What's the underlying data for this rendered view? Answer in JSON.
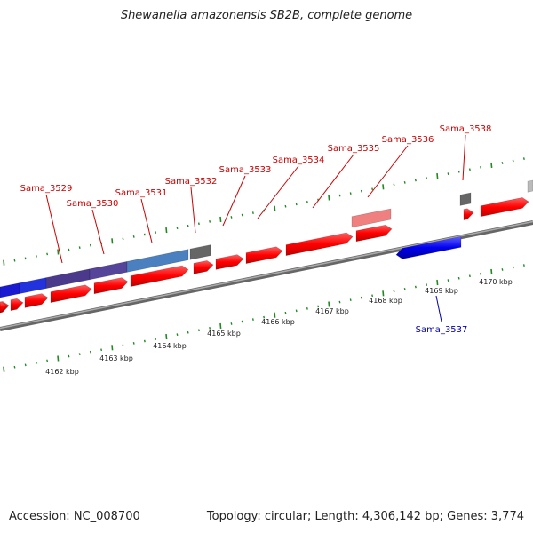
{
  "title": "Shewanella amazonensis SB2B, complete genome",
  "footer": {
    "accession": "Accession: NC_008700",
    "summary": "Topology: circular; Length: 4,306,142 bp; Genes: 3,774"
  },
  "colors": {
    "forward_gene": "#ff0000",
    "forward_gene_light": "#f08080",
    "reverse_gene": "#0000ee",
    "forward_label": "#cc0000",
    "reverse_label": "#0000aa",
    "hypothetical": "#666666",
    "operon_purple": "#4b3a8c",
    "operon_steel": "#4a7fc0",
    "tick": "#228822",
    "backbone": "#888888"
  },
  "scale_ticks": [
    {
      "label": "4162 kbp"
    },
    {
      "label": "4163 kbp"
    },
    {
      "label": "4164 kbp"
    },
    {
      "label": "4165 kbp"
    },
    {
      "label": "4166 kbp"
    },
    {
      "label": "4167 kbp"
    },
    {
      "label": "4168 kbp"
    },
    {
      "label": "4169 kbp"
    },
    {
      "label": "4170 kbp"
    }
  ],
  "gene_labels": [
    {
      "name": "Sama_3529",
      "strand": "forward"
    },
    {
      "name": "Sama_3530",
      "strand": "forward"
    },
    {
      "name": "Sama_3531",
      "strand": "forward"
    },
    {
      "name": "Sama_3532",
      "strand": "forward"
    },
    {
      "name": "Sama_3533",
      "strand": "forward"
    },
    {
      "name": "Sama_3534",
      "strand": "forward"
    },
    {
      "name": "Sama_3535",
      "strand": "forward"
    },
    {
      "name": "Sama_3536",
      "strand": "forward"
    },
    {
      "name": "Sama_3537",
      "strand": "reverse"
    },
    {
      "name": "Sama_3538",
      "strand": "forward"
    }
  ]
}
